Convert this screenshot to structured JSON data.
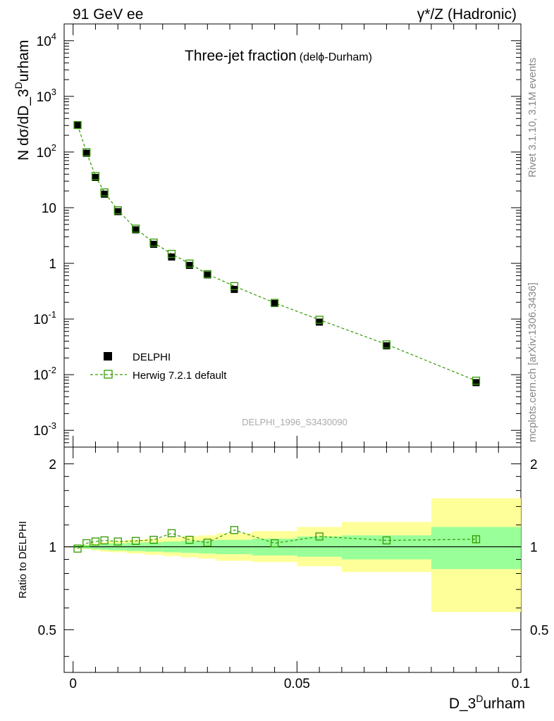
{
  "header": {
    "left": "91 GeV ee",
    "right": "γ*/Z (Hadronic)"
  },
  "side_labels": {
    "top": "Rivet 3.1.10,  3.1M events",
    "bottom": "mcplots.cern.ch [arXiv:1306.3436]"
  },
  "chart_data": [
    {
      "type": "scatter",
      "title": "Three-jet fraction",
      "title_suffix": "(delϕ-Durham)",
      "ylabel": "N dσ/dD_3^Durham",
      "watermark": "DELPHI_1996_S3430090",
      "yscale": "log",
      "ylim": [
        0.0005,
        20000
      ],
      "xlim": [
        -0.002,
        0.1
      ],
      "ytick_labels": [
        "10^-3",
        "10^-2",
        "10^-1",
        "1",
        "10",
        "10^2",
        "10^3",
        "10^4"
      ],
      "x": [
        0.001,
        0.003,
        0.005,
        0.007,
        0.01,
        0.014,
        0.018,
        0.022,
        0.026,
        0.03,
        0.036,
        0.045,
        0.055,
        0.07,
        0.09
      ],
      "series": [
        {
          "name": "DELPHI",
          "style": "markers",
          "color": "#000000",
          "values": [
            310,
            95,
            35,
            17.5,
            8.5,
            4.0,
            2.2,
            1.3,
            0.92,
            0.62,
            0.34,
            0.19,
            0.088,
            0.033,
            0.0072
          ]
        },
        {
          "name": "Herwig 7.2.1 default",
          "style": "open-markers-dashed",
          "color": "#339900",
          "values": [
            305,
            99,
            37,
            18.8,
            9.0,
            4.2,
            2.36,
            1.48,
            0.99,
            0.64,
            0.39,
            0.195,
            0.097,
            0.035,
            0.0078
          ]
        }
      ],
      "legend_position": "bottom-left"
    },
    {
      "type": "scatter",
      "ylabel": "Ratio to DELPHI",
      "xlabel": "D_3^Durham",
      "xlim": [
        -0.002,
        0.1
      ],
      "ylim": [
        0.35,
        2.3
      ],
      "xtick_labels": [
        "0",
        "0.05",
        "0.1"
      ],
      "ytick_labels": [
        "0.5",
        "1",
        "2"
      ],
      "bins": [
        0,
        0.002,
        0.004,
        0.006,
        0.008,
        0.012,
        0.016,
        0.02,
        0.024,
        0.028,
        0.032,
        0.04,
        0.05,
        0.06,
        0.08,
        0.1
      ],
      "band_inner": [
        [
          0.99,
          1.01
        ],
        [
          0.985,
          1.015
        ],
        [
          0.98,
          1.02
        ],
        [
          0.975,
          1.025
        ],
        [
          0.97,
          1.03
        ],
        [
          0.965,
          1.035
        ],
        [
          0.96,
          1.04
        ],
        [
          0.955,
          1.045
        ],
        [
          0.95,
          1.05
        ],
        [
          0.945,
          1.055
        ],
        [
          0.94,
          1.06
        ],
        [
          0.93,
          1.07
        ],
        [
          0.92,
          1.09
        ],
        [
          0.9,
          1.1
        ],
        [
          0.83,
          1.18
        ]
      ],
      "band_outer": [
        [
          0.985,
          1.015
        ],
        [
          0.98,
          1.02
        ],
        [
          0.97,
          1.03
        ],
        [
          0.96,
          1.04
        ],
        [
          0.955,
          1.05
        ],
        [
          0.945,
          1.06
        ],
        [
          0.935,
          1.07
        ],
        [
          0.925,
          1.08
        ],
        [
          0.915,
          1.09
        ],
        [
          0.905,
          1.1
        ],
        [
          0.89,
          1.12
        ],
        [
          0.88,
          1.14
        ],
        [
          0.85,
          1.18
        ],
        [
          0.81,
          1.23
        ],
        [
          0.58,
          1.5
        ]
      ],
      "band_colors": {
        "inner": "#99ff99",
        "outer": "#ffff99"
      },
      "reference_line": 1,
      "series": [
        {
          "name": "Herwig 7.2.1 default",
          "color": "#339900",
          "x": [
            0.001,
            0.003,
            0.005,
            0.007,
            0.01,
            0.014,
            0.018,
            0.022,
            0.026,
            0.03,
            0.036,
            0.045,
            0.055,
            0.07,
            0.09
          ],
          "values": [
            0.985,
            1.03,
            1.045,
            1.055,
            1.045,
            1.05,
            1.06,
            1.12,
            1.06,
            1.035,
            1.15,
            1.03,
            1.09,
            1.055,
            1.065
          ],
          "errors": [
            0,
            0,
            0,
            0,
            0,
            0,
            0,
            0,
            0,
            0,
            0,
            0,
            0,
            0,
            0.035
          ]
        }
      ]
    }
  ]
}
